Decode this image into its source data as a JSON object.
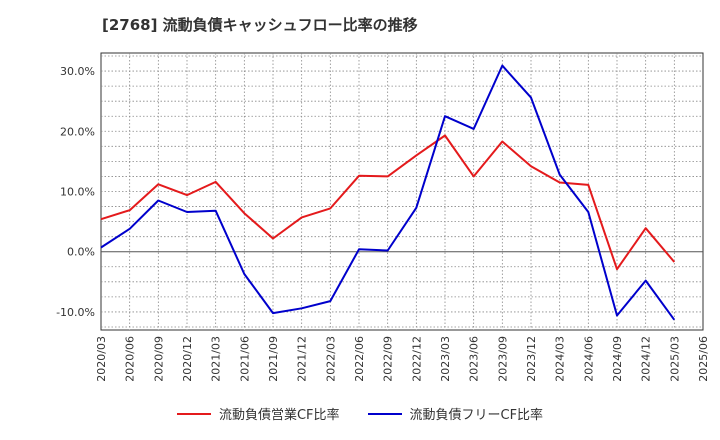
{
  "chart_data": {
    "type": "line",
    "title": "[2768]  流動負債キャッシュフロー比率の推移",
    "xlabel": "",
    "ylabel": "",
    "x": [
      "2020/03",
      "2020/06",
      "2020/09",
      "2020/12",
      "2021/03",
      "2021/06",
      "2021/09",
      "2021/12",
      "2022/03",
      "2022/06",
      "2022/09",
      "2022/12",
      "2023/03",
      "2023/06",
      "2023/09",
      "2023/12",
      "2024/03",
      "2024/06",
      "2024/09",
      "2024/12",
      "2025/03",
      "2025/06"
    ],
    "ylim": [
      -13,
      33
    ],
    "yticks": [
      30,
      20,
      10,
      0,
      -10
    ],
    "ytick_labels": [
      "30.0%",
      "20.0%",
      "10.0%",
      "0.0%",
      "-10.0%"
    ],
    "grid": true,
    "legend_position": "bottom",
    "series": [
      {
        "name": "流動負債営業CF比率",
        "color": "#e41a1c",
        "values": [
          5.4,
          6.9,
          11.2,
          9.4,
          11.6,
          6.4,
          2.2,
          5.7,
          7.2,
          12.6,
          12.5,
          16.0,
          19.3,
          12.5,
          18.3,
          14.2,
          11.5,
          11.1,
          -2.9,
          3.9,
          -1.7,
          null
        ]
      },
      {
        "name": "流動負債フリーCF比率",
        "color": "#0000cc",
        "values": [
          0.7,
          3.8,
          8.5,
          6.6,
          6.8,
          -3.7,
          -10.2,
          -9.4,
          -8.2,
          0.4,
          0.2,
          7.3,
          22.5,
          20.4,
          30.9,
          25.6,
          12.8,
          6.6,
          -10.6,
          -4.8,
          -11.3,
          null
        ]
      }
    ]
  }
}
